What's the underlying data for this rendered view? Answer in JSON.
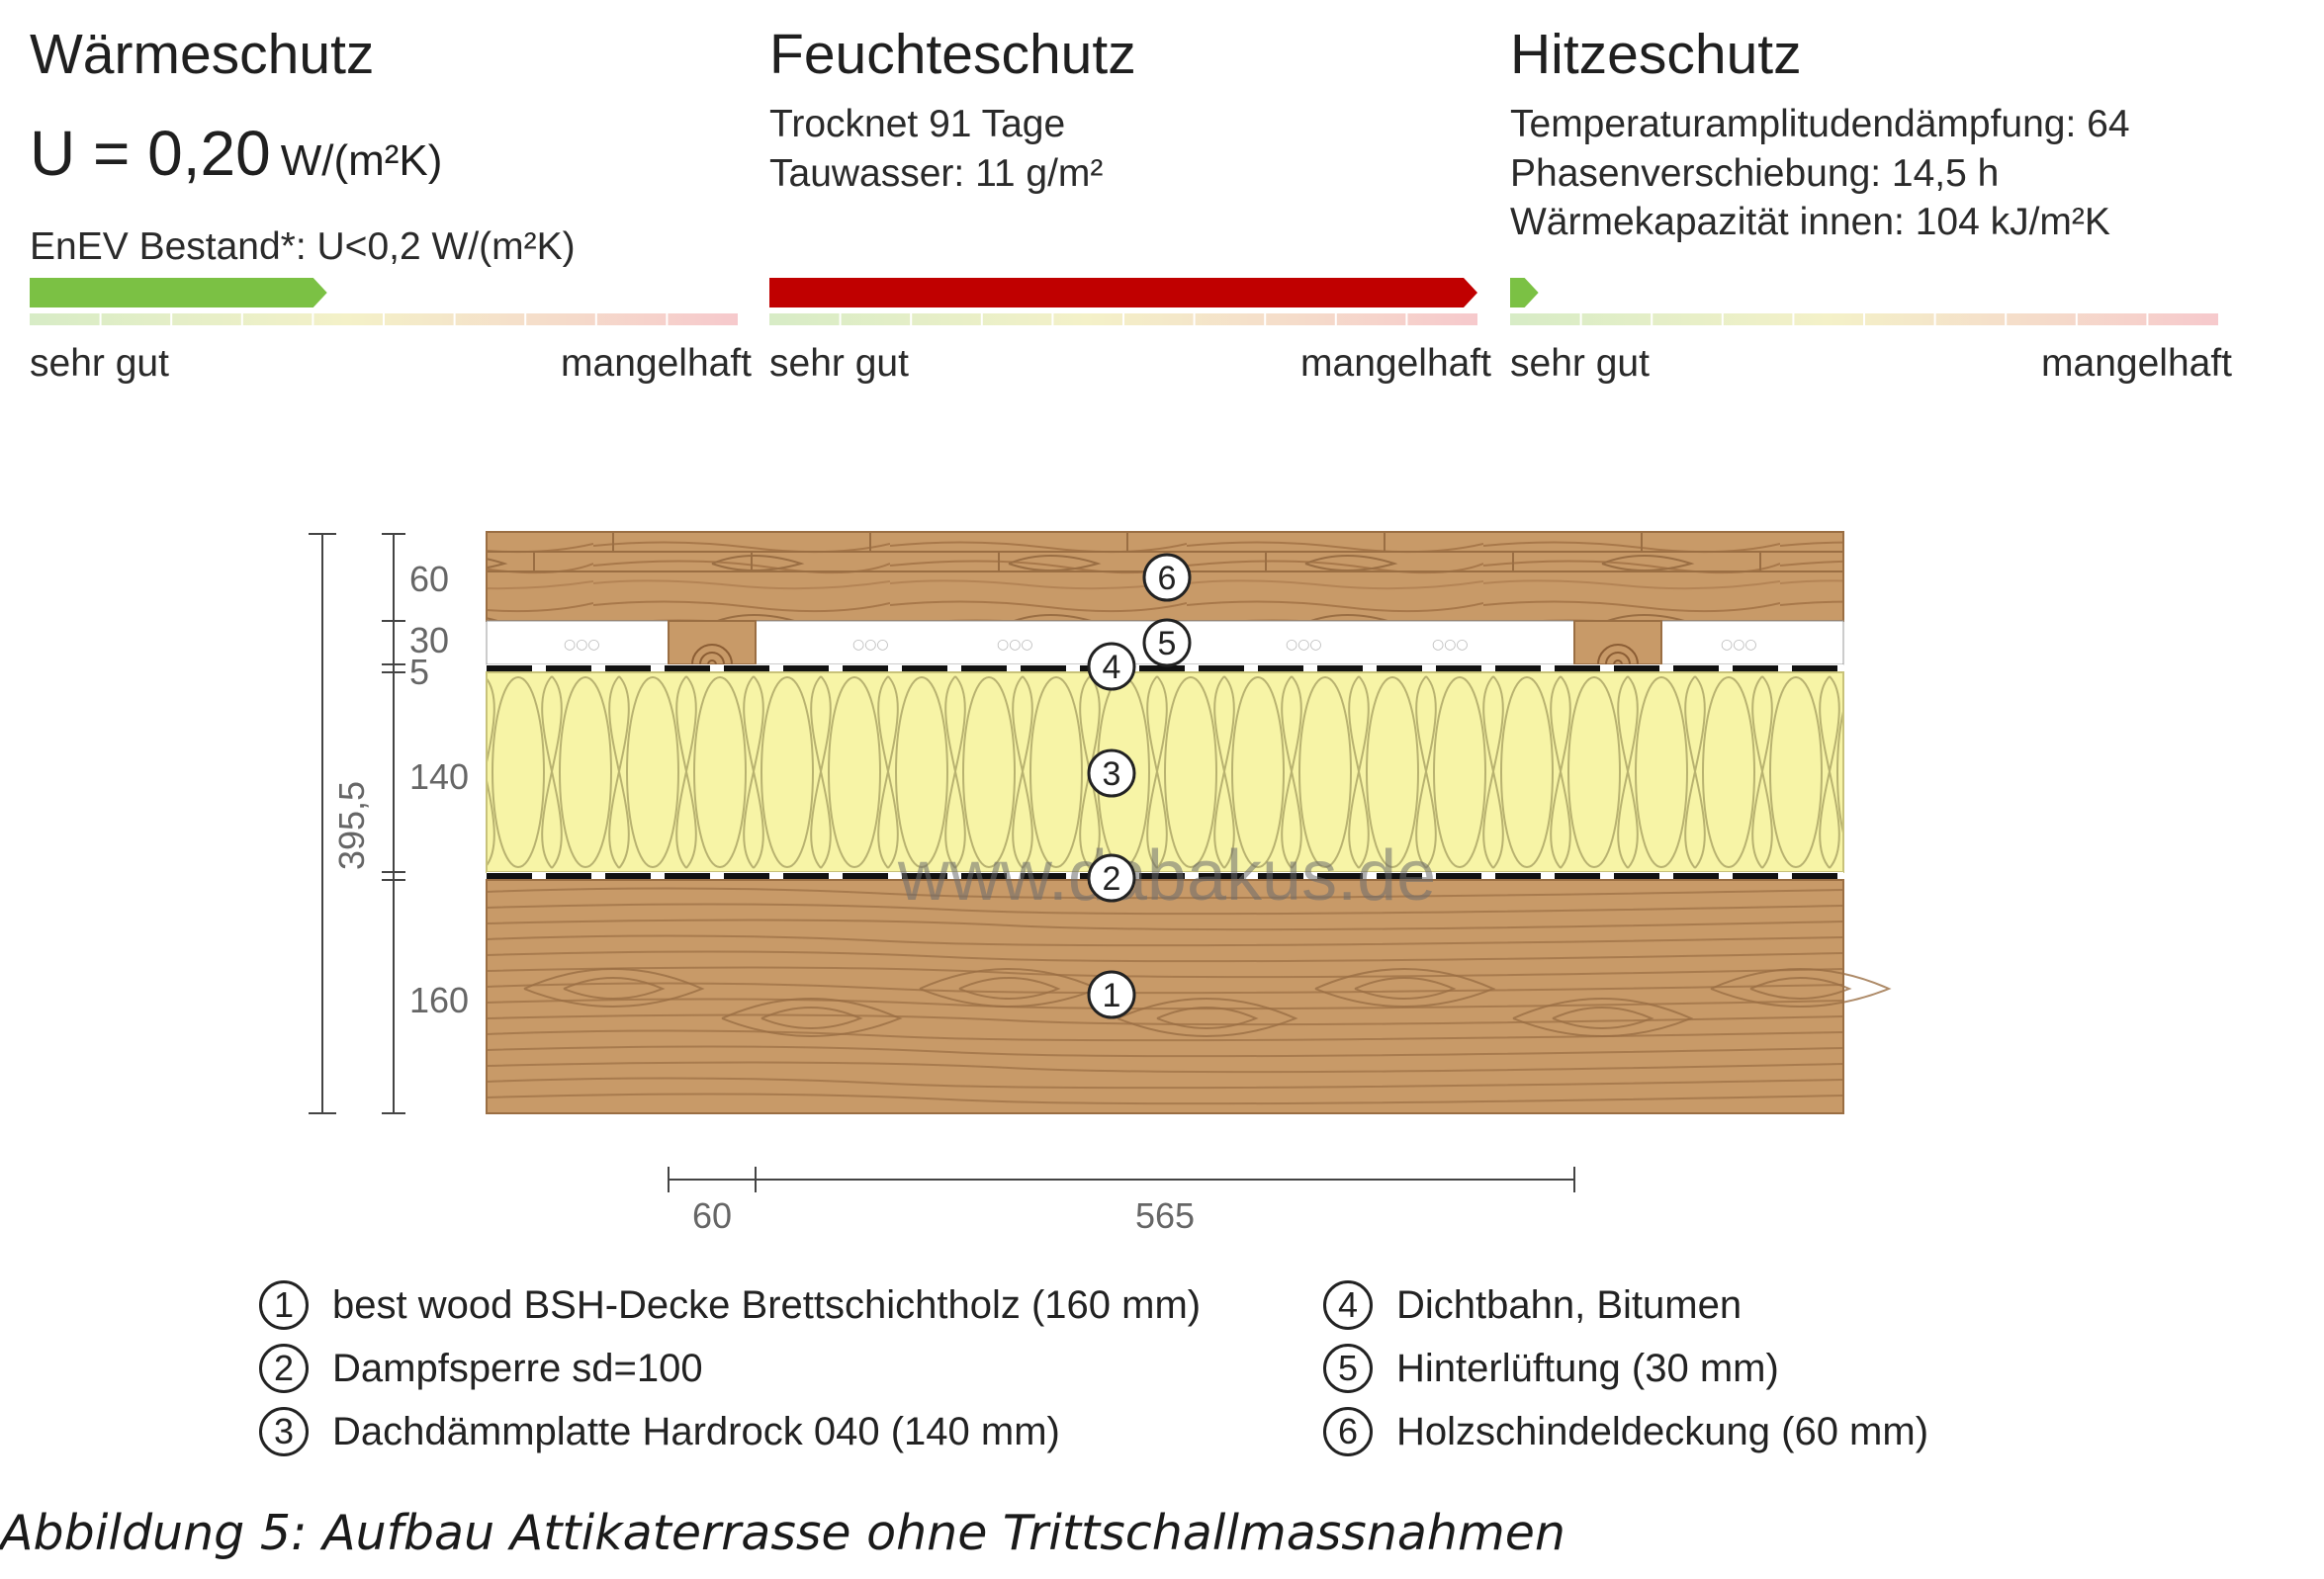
{
  "waermeschutz": {
    "title": "Wärmeschutz",
    "u_prefix": "U = 0,20",
    "u_unit": "W/(m²K)",
    "enev": "EnEV Bestand*: U<0,2 W/(m²K)",
    "rating": 0.42,
    "bar_color": "#7bc144",
    "label_good": "sehr gut",
    "label_bad": "mangelhaft"
  },
  "feuchteschutz": {
    "title": "Feuchteschutz",
    "line1": "Trocknet 91 Tage",
    "line2": "Tauwasser: 11 g/m²",
    "rating": 1.0,
    "bar_color": "#c00000",
    "label_good": "sehr gut",
    "label_bad": "mangelhaft"
  },
  "hitzeschutz": {
    "title": "Hitzeschutz",
    "line1": "Temperaturamplitudendämpfung: 64",
    "line2": "Phasenverschiebung: 14,5 h",
    "line3": "Wärmekapazität innen: 104 kJ/m²K",
    "rating": 0.04,
    "bar_color": "#7bc144",
    "label_good": "sehr gut",
    "label_bad": "mangelhaft"
  },
  "diagram": {
    "total_thickness": "395,5",
    "layer_thickness": [
      "60",
      "30",
      "5",
      "140",
      "160"
    ],
    "spacing": [
      "60",
      "565"
    ],
    "watermark": "www.dabakus.de",
    "colors": {
      "wood": "#c89a68",
      "wood_line": "#9a6e43",
      "insulation": "#f7f4a6",
      "insulation_line": "#b8b270"
    }
  },
  "legend": [
    {
      "num": "1",
      "text": "best wood BSH-Decke Brettschichtholz (160 mm)"
    },
    {
      "num": "2",
      "text": "Dampfsperre sd=100"
    },
    {
      "num": "3",
      "text": "Dachdämmplatte Hardrock 040 (140 mm)"
    },
    {
      "num": "4",
      "text": "Dichtbahn, Bitumen"
    },
    {
      "num": "5",
      "text": "Hinterlüftung (30 mm)"
    },
    {
      "num": "6",
      "text": "Holzschindeldeckung (60 mm)"
    }
  ],
  "caption": "Abbildung 5: Aufbau Attikaterrasse ohne Trittschallmassnahmen"
}
